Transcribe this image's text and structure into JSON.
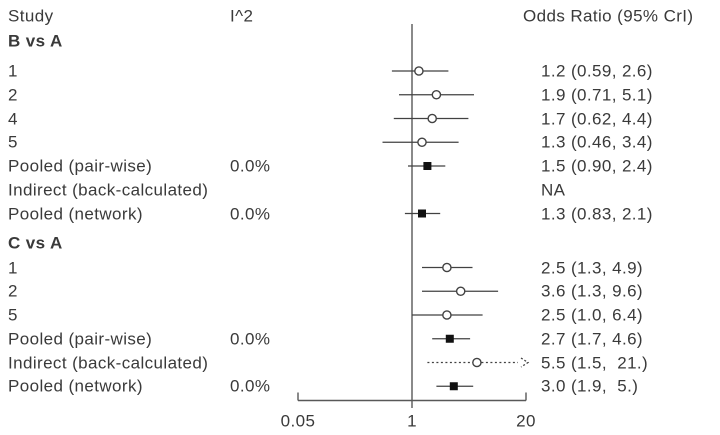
{
  "chart_data": {
    "type": "scatter",
    "variant": "forest-plot",
    "columns": {
      "study": "Study",
      "i2": "I^2",
      "or": "Odds Ratio (95% CrI)"
    },
    "x_axis": {
      "scale": "log",
      "ticks": [
        0.05,
        1,
        20
      ],
      "tick_labels": [
        "0.05",
        "1",
        "20"
      ],
      "range": [
        0.05,
        20
      ],
      "reference_line": 1
    },
    "legend": "none",
    "grid": "off",
    "groups": [
      {
        "label": "B vs A",
        "rows": [
          {
            "study": "1",
            "i2": "",
            "or_text": "1.2 (0.59, 2.6)",
            "est": 1.2,
            "lo": 0.59,
            "hi": 2.6,
            "marker": "circle",
            "line": "solid"
          },
          {
            "study": "2",
            "i2": "",
            "or_text": "1.9 (0.71, 5.1)",
            "est": 1.9,
            "lo": 0.71,
            "hi": 5.1,
            "marker": "circle",
            "line": "solid"
          },
          {
            "study": "4",
            "i2": "",
            "or_text": "1.7 (0.62, 4.4)",
            "est": 1.7,
            "lo": 0.62,
            "hi": 4.4,
            "marker": "circle",
            "line": "solid"
          },
          {
            "study": "5",
            "i2": "",
            "or_text": "1.3 (0.46, 3.4)",
            "est": 1.3,
            "lo": 0.46,
            "hi": 3.4,
            "marker": "circle",
            "line": "solid"
          },
          {
            "study": "Pooled (pair-wise)",
            "i2": "0.0%",
            "or_text": "1.5 (0.90, 2.4)",
            "est": 1.5,
            "lo": 0.9,
            "hi": 2.4,
            "marker": "square",
            "line": "solid"
          },
          {
            "study": "Indirect (back-calculated)",
            "i2": "",
            "or_text": "NA",
            "est": null,
            "lo": null,
            "hi": null,
            "marker": "none",
            "line": "none"
          },
          {
            "study": "Pooled (network)",
            "i2": "0.0%",
            "or_text": "1.3 (0.83, 2.1)",
            "est": 1.3,
            "lo": 0.83,
            "hi": 2.1,
            "marker": "square",
            "line": "solid"
          }
        ]
      },
      {
        "label": "C vs A",
        "rows": [
          {
            "study": "1",
            "i2": "",
            "or_text": "2.5 (1.3, 4.9)",
            "est": 2.5,
            "lo": 1.3,
            "hi": 4.9,
            "marker": "circle",
            "line": "solid"
          },
          {
            "study": "2",
            "i2": "",
            "or_text": "3.6 (1.3, 9.6)",
            "est": 3.6,
            "lo": 1.3,
            "hi": 9.6,
            "marker": "circle",
            "line": "solid"
          },
          {
            "study": "5",
            "i2": "",
            "or_text": "2.5 (1.0, 6.4)",
            "est": 2.5,
            "lo": 1.0,
            "hi": 6.4,
            "marker": "circle",
            "line": "solid"
          },
          {
            "study": "Pooled (pair-wise)",
            "i2": "0.0%",
            "or_text": "2.7 (1.7, 4.6)",
            "est": 2.7,
            "lo": 1.7,
            "hi": 4.6,
            "marker": "square",
            "line": "solid"
          },
          {
            "study": "Indirect (back-calculated)",
            "i2": "",
            "or_text": "5.5 (1.5,  21.)",
            "est": 5.5,
            "lo": 1.5,
            "hi": 21,
            "marker": "circle",
            "line": "dotted",
            "arrow_right": true
          },
          {
            "study": "Pooled (network)",
            "i2": "0.0%",
            "or_text": "3.0 (1.9,  5.)",
            "est": 3.0,
            "lo": 1.9,
            "hi": 5.0,
            "marker": "square",
            "line": "solid"
          }
        ]
      }
    ],
    "colors": {
      "text": "#3a3a3a",
      "axis_line": "#585858",
      "ci_line": "#424242",
      "square_marker": "#111111",
      "circle_marker_fill": "#ffffff",
      "background": "#ffffff"
    }
  }
}
